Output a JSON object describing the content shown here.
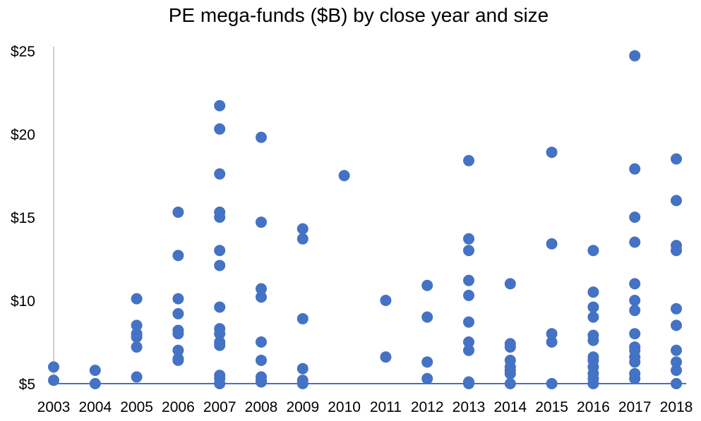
{
  "chart_data": {
    "type": "scatter",
    "title": "PE mega-funds ($B) by close year and size",
    "xlabel": "",
    "ylabel": "",
    "categories": [
      "2003",
      "2004",
      "2005",
      "2006",
      "2007",
      "2008",
      "2009",
      "2010",
      "2011",
      "2012",
      "2013",
      "2014",
      "2015",
      "2016",
      "2017",
      "2018"
    ],
    "ylim": [
      5,
      25
    ],
    "y_ticks": [
      5,
      10,
      15,
      20,
      25
    ],
    "y_tick_labels": [
      "$5",
      "$10",
      "$15",
      "$20",
      "$25"
    ],
    "grid": false,
    "legend": "none",
    "marker_color": "#4472C4",
    "axis_color": "#4472C4",
    "series": [
      {
        "points": [
          {
            "x": "2003",
            "y": 6.0
          },
          {
            "x": "2003",
            "y": 5.2
          },
          {
            "x": "2004",
            "y": 5.8
          },
          {
            "x": "2004",
            "y": 5.0
          },
          {
            "x": "2005",
            "y": 10.1
          },
          {
            "x": "2005",
            "y": 8.5
          },
          {
            "x": "2005",
            "y": 8.0
          },
          {
            "x": "2005",
            "y": 7.8
          },
          {
            "x": "2005",
            "y": 7.2
          },
          {
            "x": "2005",
            "y": 5.4
          },
          {
            "x": "2006",
            "y": 15.3
          },
          {
            "x": "2006",
            "y": 12.7
          },
          {
            "x": "2006",
            "y": 10.1
          },
          {
            "x": "2006",
            "y": 9.2
          },
          {
            "x": "2006",
            "y": 8.2
          },
          {
            "x": "2006",
            "y": 8.0
          },
          {
            "x": "2006",
            "y": 7.0
          },
          {
            "x": "2006",
            "y": 6.5
          },
          {
            "x": "2006",
            "y": 6.4
          },
          {
            "x": "2007",
            "y": 21.7
          },
          {
            "x": "2007",
            "y": 20.3
          },
          {
            "x": "2007",
            "y": 17.6
          },
          {
            "x": "2007",
            "y": 15.3
          },
          {
            "x": "2007",
            "y": 15.0
          },
          {
            "x": "2007",
            "y": 13.0
          },
          {
            "x": "2007",
            "y": 12.1
          },
          {
            "x": "2007",
            "y": 9.6
          },
          {
            "x": "2007",
            "y": 8.3
          },
          {
            "x": "2007",
            "y": 8.0
          },
          {
            "x": "2007",
            "y": 7.5
          },
          {
            "x": "2007",
            "y": 7.3
          },
          {
            "x": "2007",
            "y": 5.5
          },
          {
            "x": "2007",
            "y": 5.3
          },
          {
            "x": "2007",
            "y": 5.0
          },
          {
            "x": "2008",
            "y": 19.8
          },
          {
            "x": "2008",
            "y": 14.7
          },
          {
            "x": "2008",
            "y": 10.7
          },
          {
            "x": "2008",
            "y": 10.2
          },
          {
            "x": "2008",
            "y": 7.5
          },
          {
            "x": "2008",
            "y": 6.4
          },
          {
            "x": "2008",
            "y": 5.4
          },
          {
            "x": "2008",
            "y": 5.2
          },
          {
            "x": "2008",
            "y": 5.1
          },
          {
            "x": "2009",
            "y": 14.3
          },
          {
            "x": "2009",
            "y": 13.7
          },
          {
            "x": "2009",
            "y": 8.9
          },
          {
            "x": "2009",
            "y": 5.9
          },
          {
            "x": "2009",
            "y": 5.2
          },
          {
            "x": "2009",
            "y": 5.0
          },
          {
            "x": "2010",
            "y": 17.5
          },
          {
            "x": "2011",
            "y": 10.0
          },
          {
            "x": "2011",
            "y": 6.6
          },
          {
            "x": "2012",
            "y": 10.9
          },
          {
            "x": "2012",
            "y": 9.0
          },
          {
            "x": "2012",
            "y": 6.3
          },
          {
            "x": "2012",
            "y": 5.3
          },
          {
            "x": "2013",
            "y": 18.4
          },
          {
            "x": "2013",
            "y": 13.7
          },
          {
            "x": "2013",
            "y": 13.0
          },
          {
            "x": "2013",
            "y": 11.2
          },
          {
            "x": "2013",
            "y": 10.3
          },
          {
            "x": "2013",
            "y": 8.7
          },
          {
            "x": "2013",
            "y": 7.5
          },
          {
            "x": "2013",
            "y": 7.0
          },
          {
            "x": "2013",
            "y": 5.1
          },
          {
            "x": "2013",
            "y": 5.0
          },
          {
            "x": "2014",
            "y": 11.0
          },
          {
            "x": "2014",
            "y": 7.4
          },
          {
            "x": "2014",
            "y": 7.2
          },
          {
            "x": "2014",
            "y": 6.4
          },
          {
            "x": "2014",
            "y": 6.0
          },
          {
            "x": "2014",
            "y": 5.8
          },
          {
            "x": "2014",
            "y": 5.6
          },
          {
            "x": "2014",
            "y": 5.0
          },
          {
            "x": "2015",
            "y": 18.9
          },
          {
            "x": "2015",
            "y": 13.4
          },
          {
            "x": "2015",
            "y": 8.0
          },
          {
            "x": "2015",
            "y": 7.5
          },
          {
            "x": "2015",
            "y": 5.0
          },
          {
            "x": "2016",
            "y": 13.0
          },
          {
            "x": "2016",
            "y": 10.5
          },
          {
            "x": "2016",
            "y": 9.6
          },
          {
            "x": "2016",
            "y": 9.0
          },
          {
            "x": "2016",
            "y": 7.9
          },
          {
            "x": "2016",
            "y": 7.6
          },
          {
            "x": "2016",
            "y": 6.6
          },
          {
            "x": "2016",
            "y": 6.4
          },
          {
            "x": "2016",
            "y": 6.0
          },
          {
            "x": "2016",
            "y": 5.6
          },
          {
            "x": "2016",
            "y": 5.3
          },
          {
            "x": "2016",
            "y": 5.0
          },
          {
            "x": "2017",
            "y": 24.7
          },
          {
            "x": "2017",
            "y": 17.9
          },
          {
            "x": "2017",
            "y": 15.0
          },
          {
            "x": "2017",
            "y": 13.5
          },
          {
            "x": "2017",
            "y": 11.0
          },
          {
            "x": "2017",
            "y": 10.0
          },
          {
            "x": "2017",
            "y": 9.4
          },
          {
            "x": "2017",
            "y": 8.0
          },
          {
            "x": "2017",
            "y": 7.2
          },
          {
            "x": "2017",
            "y": 7.0
          },
          {
            "x": "2017",
            "y": 6.6
          },
          {
            "x": "2017",
            "y": 6.3
          },
          {
            "x": "2017",
            "y": 5.6
          },
          {
            "x": "2017",
            "y": 5.3
          },
          {
            "x": "2018",
            "y": 18.5
          },
          {
            "x": "2018",
            "y": 16.0
          },
          {
            "x": "2018",
            "y": 13.3
          },
          {
            "x": "2018",
            "y": 13.0
          },
          {
            "x": "2018",
            "y": 9.5
          },
          {
            "x": "2018",
            "y": 8.5
          },
          {
            "x": "2018",
            "y": 7.0
          },
          {
            "x": "2018",
            "y": 6.3
          },
          {
            "x": "2018",
            "y": 5.8
          },
          {
            "x": "2018",
            "y": 5.0
          }
        ]
      }
    ]
  }
}
